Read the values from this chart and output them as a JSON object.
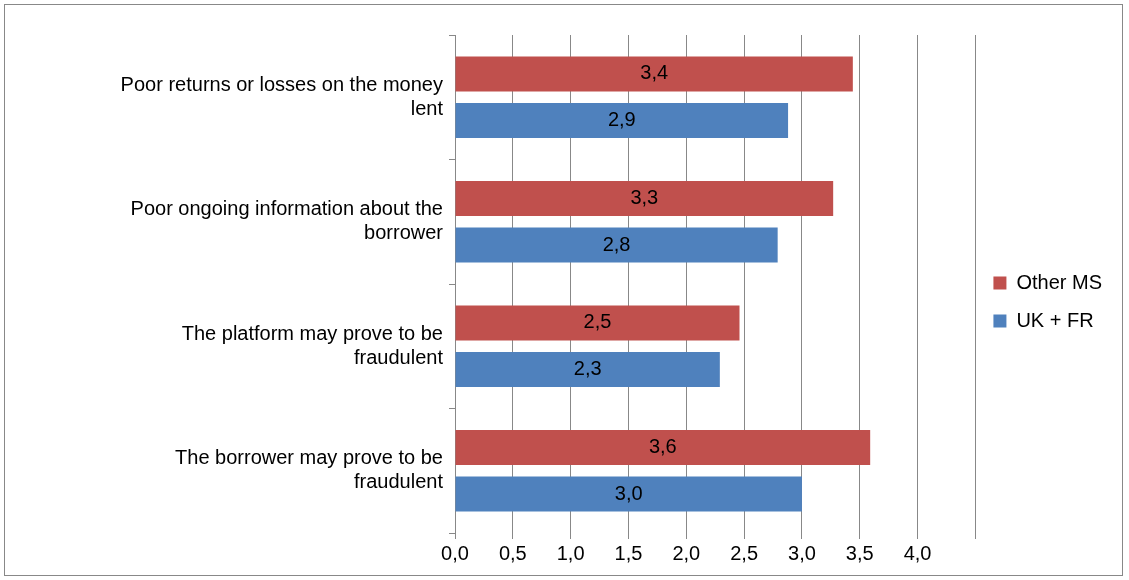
{
  "chart_data": {
    "type": "bar",
    "orientation": "horizontal",
    "categories": [
      "Poor returns or losses on the money lent",
      "Poor ongoing information about the borrower",
      "The platform may prove to be fraudulent",
      "The borrower may prove to be fraudulent"
    ],
    "series": [
      {
        "name": "Other MS",
        "color": "#c0504d",
        "values": [
          3.44,
          3.27,
          2.46,
          3.59
        ],
        "value_labels": [
          "3,4",
          "3,3",
          "2,5",
          "3,6"
        ]
      },
      {
        "name": "UK + FR",
        "color": "#4f81bd",
        "values": [
          2.88,
          2.79,
          2.29,
          3.0
        ],
        "value_labels": [
          "2,9",
          "2,8",
          "2,3",
          "3,0"
        ]
      }
    ],
    "xlim": [
      0,
      4.5
    ],
    "xticks": [
      {
        "value": 0,
        "label": "0,0"
      },
      {
        "value": 0.5,
        "label": "0,5"
      },
      {
        "value": 1,
        "label": "1,0"
      },
      {
        "value": 1.5,
        "label": "1,5"
      },
      {
        "value": 2,
        "label": "2,0"
      },
      {
        "value": 2.5,
        "label": "2,5"
      },
      {
        "value": 3,
        "label": "3,0"
      },
      {
        "value": 3.5,
        "label": "3,5"
      },
      {
        "value": 4,
        "label": "4,0"
      },
      {
        "value": 4.5,
        "label": null
      }
    ],
    "grid": "x",
    "legend": "right"
  }
}
